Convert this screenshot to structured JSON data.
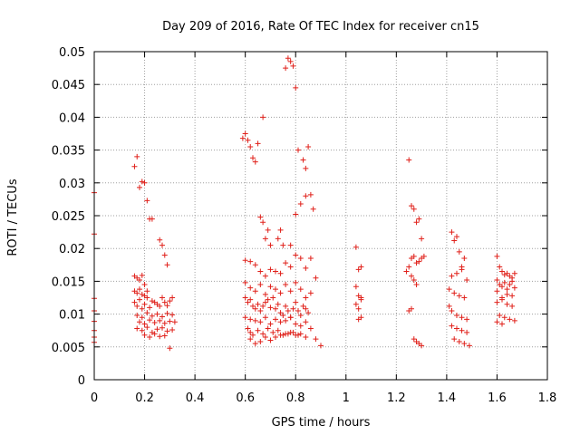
{
  "chart_data": {
    "type": "scatter",
    "title": "Day 209 of 2016, Rate Of TEC Index for receiver cn15",
    "xlabel": "GPS time / hours",
    "ylabel": "ROTI / TECUs",
    "xlim": [
      0,
      1.8
    ],
    "ylim": [
      0,
      0.05
    ],
    "x_ticks": [
      "0",
      "0.2",
      "0.4",
      "0.6",
      "0.8",
      "1",
      "1.2",
      "1.4",
      "1.6",
      "1.8"
    ],
    "y_ticks": [
      "0",
      "0.005",
      "0.01",
      "0.015",
      "0.02",
      "0.025",
      "0.03",
      "0.035",
      "0.04",
      "0.045",
      "0.05"
    ],
    "grid": true,
    "marker": "+",
    "color": "#e0201a",
    "series": [
      {
        "name": "ROTI",
        "x": [
          0.0,
          0.0,
          0.0,
          0.0,
          0.0,
          0.0,
          0.0,
          0.0,
          0.16,
          0.17,
          0.18,
          0.19,
          0.2,
          0.21,
          0.22,
          0.23,
          0.26,
          0.27,
          0.28,
          0.29,
          0.16,
          0.17,
          0.18,
          0.19,
          0.2,
          0.16,
          0.17,
          0.18,
          0.19,
          0.2,
          0.21,
          0.16,
          0.17,
          0.18,
          0.19,
          0.2,
          0.21,
          0.22,
          0.23,
          0.24,
          0.25,
          0.26,
          0.27,
          0.28,
          0.29,
          0.3,
          0.31,
          0.17,
          0.19,
          0.21,
          0.23,
          0.25,
          0.27,
          0.29,
          0.31,
          0.18,
          0.2,
          0.22,
          0.24,
          0.26,
          0.28,
          0.3,
          0.32,
          0.17,
          0.19,
          0.21,
          0.23,
          0.25,
          0.27,
          0.29,
          0.31,
          0.2,
          0.22,
          0.24,
          0.26,
          0.28,
          0.3,
          0.59,
          0.6,
          0.61,
          0.62,
          0.63,
          0.64,
          0.65,
          0.67,
          0.74,
          0.76,
          0.77,
          0.78,
          0.79,
          0.8,
          0.81,
          0.83,
          0.84,
          0.85,
          0.66,
          0.67,
          0.68,
          0.69,
          0.7,
          0.73,
          0.75,
          0.78,
          0.8,
          0.82,
          0.84,
          0.86,
          0.87,
          0.6,
          0.62,
          0.64,
          0.66,
          0.68,
          0.7,
          0.72,
          0.74,
          0.76,
          0.78,
          0.8,
          0.82,
          0.84,
          0.86,
          0.88,
          0.6,
          0.62,
          0.64,
          0.66,
          0.68,
          0.7,
          0.72,
          0.74,
          0.76,
          0.78,
          0.8,
          0.82,
          0.84,
          0.86,
          0.6,
          0.61,
          0.62,
          0.63,
          0.64,
          0.65,
          0.66,
          0.67,
          0.68,
          0.69,
          0.7,
          0.71,
          0.72,
          0.73,
          0.74,
          0.75,
          0.76,
          0.77,
          0.78,
          0.79,
          0.8,
          0.81,
          0.82,
          0.83,
          0.84,
          0.85,
          0.6,
          0.62,
          0.64,
          0.66,
          0.68,
          0.7,
          0.72,
          0.74,
          0.76,
          0.78,
          0.8,
          0.82,
          0.84,
          0.86,
          0.88,
          0.9,
          0.61,
          0.62,
          0.63,
          0.65,
          0.67,
          0.69,
          0.71,
          0.73,
          0.75,
          0.77,
          0.79,
          0.81,
          0.62,
          0.64,
          0.66,
          0.68,
          0.7,
          0.72,
          0.74,
          0.76,
          0.78,
          0.8,
          0.82,
          0.84,
          1.04,
          1.05,
          1.06,
          1.04,
          1.05,
          1.06,
          1.04,
          1.05,
          1.06,
          1.05,
          1.06,
          1.25,
          1.26,
          1.27,
          1.28,
          1.29,
          1.3,
          1.26,
          1.27,
          1.28,
          1.29,
          1.3,
          1.31,
          1.24,
          1.25,
          1.26,
          1.27,
          1.28,
          1.25,
          1.26,
          1.27,
          1.28,
          1.29,
          1.3,
          1.42,
          1.43,
          1.44,
          1.45,
          1.46,
          1.47,
          1.42,
          1.44,
          1.46,
          1.48,
          1.41,
          1.43,
          1.45,
          1.47,
          1.41,
          1.42,
          1.44,
          1.46,
          1.48,
          1.42,
          1.44,
          1.46,
          1.48,
          1.43,
          1.45,
          1.47,
          1.49,
          1.6,
          1.61,
          1.62,
          1.63,
          1.64,
          1.65,
          1.66,
          1.67,
          1.6,
          1.61,
          1.62,
          1.63,
          1.64,
          1.65,
          1.66,
          1.67,
          1.6,
          1.62,
          1.64,
          1.66,
          1.6,
          1.62,
          1.64,
          1.66,
          1.61,
          1.63,
          1.65,
          1.67,
          1.6,
          1.62
        ],
        "y": [
          0.0285,
          0.0222,
          0.0124,
          0.0105,
          0.0089,
          0.0075,
          0.0065,
          0.0057,
          0.0325,
          0.034,
          0.0293,
          0.0302,
          0.03,
          0.0273,
          0.0245,
          0.0245,
          0.0213,
          0.0205,
          0.019,
          0.0175,
          0.0158,
          0.0155,
          0.0152,
          0.0159,
          0.0145,
          0.0135,
          0.0132,
          0.0138,
          0.013,
          0.0128,
          0.0135,
          0.0118,
          0.0112,
          0.0122,
          0.0108,
          0.0115,
          0.0125,
          0.011,
          0.012,
          0.0118,
          0.0115,
          0.0112,
          0.0125,
          0.0118,
          0.0113,
          0.012,
          0.0125,
          0.0098,
          0.0095,
          0.0102,
          0.0097,
          0.01,
          0.0096,
          0.0101,
          0.0099,
          0.0088,
          0.0085,
          0.0091,
          0.0087,
          0.009,
          0.0086,
          0.0089,
          0.0088,
          0.0078,
          0.0075,
          0.008,
          0.0072,
          0.0077,
          0.0079,
          0.0074,
          0.0076,
          0.0068,
          0.0065,
          0.007,
          0.0066,
          0.0067,
          0.0048,
          0.0368,
          0.0375,
          0.0365,
          0.0355,
          0.0338,
          0.0332,
          0.036,
          0.04,
          0.0228,
          0.0475,
          0.049,
          0.0485,
          0.0478,
          0.0445,
          0.035,
          0.0335,
          0.0322,
          0.0355,
          0.0248,
          0.024,
          0.0215,
          0.0228,
          0.0205,
          0.0215,
          0.0205,
          0.0205,
          0.0252,
          0.0268,
          0.028,
          0.0282,
          0.026,
          0.0182,
          0.018,
          0.0175,
          0.0165,
          0.0158,
          0.0168,
          0.0165,
          0.0162,
          0.0178,
          0.0172,
          0.019,
          0.0185,
          0.017,
          0.0185,
          0.0155,
          0.0148,
          0.014,
          0.0135,
          0.0145,
          0.013,
          0.0142,
          0.0138,
          0.0132,
          0.0145,
          0.0135,
          0.0148,
          0.0138,
          0.0125,
          0.0132,
          0.0125,
          0.0118,
          0.0122,
          0.0112,
          0.0108,
          0.0115,
          0.0105,
          0.0112,
          0.0118,
          0.0122,
          0.011,
          0.0125,
          0.0108,
          0.0115,
          0.0102,
          0.0098,
          0.0112,
          0.0105,
          0.0095,
          0.0108,
          0.0118,
          0.0105,
          0.0098,
          0.0112,
          0.0108,
          0.0102,
          0.0095,
          0.0092,
          0.009,
          0.0088,
          0.0095,
          0.0085,
          0.0092,
          0.0088,
          0.009,
          0.0095,
          0.0085,
          0.0082,
          0.0088,
          0.0078,
          0.0062,
          0.0052,
          0.0078,
          0.0072,
          0.0068,
          0.0075,
          0.007,
          0.0078,
          0.0072,
          0.0075,
          0.0068,
          0.007,
          0.0072,
          0.0068,
          0.0062,
          0.0055,
          0.0058,
          0.0065,
          0.006,
          0.0065,
          0.0068,
          0.007,
          0.0072,
          0.0068,
          0.007,
          0.0065,
          0.0202,
          0.0168,
          0.0172,
          0.0142,
          0.0128,
          0.0122,
          0.0115,
          0.0108,
          0.0125,
          0.0092,
          0.0095,
          0.0335,
          0.0265,
          0.026,
          0.024,
          0.0245,
          0.0215,
          0.0185,
          0.0188,
          0.0178,
          0.018,
          0.0185,
          0.0188,
          0.0165,
          0.0172,
          0.0158,
          0.0152,
          0.0145,
          0.0105,
          0.0108,
          0.0062,
          0.0058,
          0.0055,
          0.0052,
          0.0225,
          0.0212,
          0.0218,
          0.0195,
          0.0172,
          0.0185,
          0.0158,
          0.0162,
          0.0168,
          0.0152,
          0.0138,
          0.0132,
          0.0128,
          0.0125,
          0.0112,
          0.0105,
          0.0098,
          0.0095,
          0.0092,
          0.0082,
          0.0078,
          0.0075,
          0.0072,
          0.0062,
          0.0058,
          0.0055,
          0.0052,
          0.0188,
          0.0172,
          0.0165,
          0.016,
          0.0162,
          0.0158,
          0.0155,
          0.0162,
          0.0152,
          0.0145,
          0.0142,
          0.0148,
          0.0138,
          0.0145,
          0.015,
          0.014,
          0.0135,
          0.0125,
          0.013,
          0.0128,
          0.0118,
          0.0122,
          0.0115,
          0.0112,
          0.0098,
          0.0095,
          0.0092,
          0.009,
          0.0088,
          0.0085
        ]
      }
    ]
  }
}
